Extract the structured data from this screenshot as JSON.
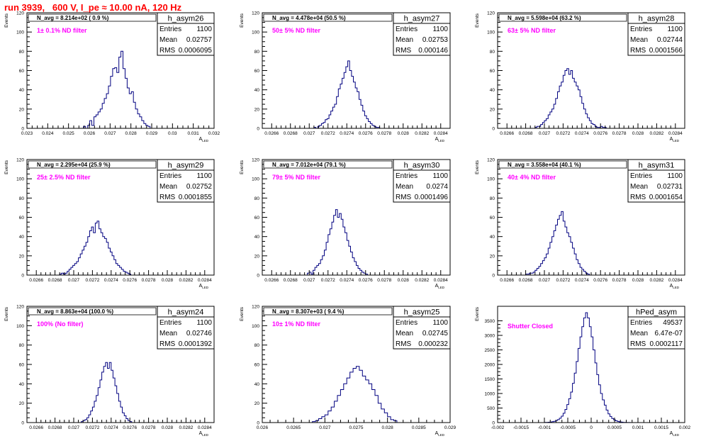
{
  "header": {
    "run_label": "run 3939,   600 V, I_pe ≈ 10.00 nA, 120 Hz",
    "title_color": "#ff0000"
  },
  "colors": {
    "hist_line": "#000080",
    "filter_text": "#ff00ff",
    "frame": "#000000"
  },
  "chart_data": [
    {
      "type": "histogram",
      "name": "h_asym26",
      "stats": {
        "Entries": "1100",
        "Mean": "0.02757",
        "RMS": "0.0006095"
      },
      "navg": "N_avg = 8.214e+02 ( 0.9 %)",
      "filter": "1± 0.1% ND filter",
      "xlim": [
        0.023,
        0.032
      ],
      "ylim": [
        0,
        120
      ],
      "yticks": [
        0,
        20,
        40,
        60,
        80,
        100,
        120
      ],
      "xtick_labels": [
        "0.023",
        "0.024",
        "0.025",
        "0.026",
        "0.027",
        "0.028",
        "0.029",
        "0.03",
        "0.031",
        "0.032"
      ],
      "xtick_values": [
        0.023,
        0.024,
        0.025,
        0.026,
        0.027,
        0.028,
        0.029,
        0.03,
        0.031,
        0.032
      ],
      "xlabel": "A_LED",
      "ylabel": "Events",
      "bins": {
        "x0": 0.02572,
        "width": 0.0001,
        "counts": [
          2,
          0,
          3,
          8,
          3,
          12,
          14,
          17,
          20,
          26,
          31,
          36,
          44,
          54,
          62,
          63,
          58,
          74,
          80,
          62,
          52,
          42,
          36,
          38,
          27,
          20,
          15,
          12,
          8,
          5,
          3,
          2
        ]
      }
    },
    {
      "type": "histogram",
      "name": "h_asym27",
      "stats": {
        "Entries": "1100",
        "Mean": "0.02753",
        "RMS": "0.000146"
      },
      "navg": "N_avg = 4.478e+04 (50.5 %)",
      "filter": "50± 5% ND filter",
      "xlim": [
        0.0265,
        0.0285
      ],
      "ylim": [
        0,
        120
      ],
      "yticks": [
        0,
        20,
        40,
        60,
        80,
        100,
        120
      ],
      "xtick_labels": [
        "0.0266",
        "0.0268",
        "0.027",
        "0.0272",
        "0.0274",
        "0.0276",
        "0.0278",
        "0.028",
        "0.0282",
        "0.0284"
      ],
      "xtick_values": [
        0.0266,
        0.0268,
        0.027,
        0.0272,
        0.0274,
        0.0276,
        0.0278,
        0.028,
        0.0282,
        0.0284
      ],
      "xlabel": "A_LED",
      "ylabel": "Events",
      "bins": {
        "x0": 0.02705,
        "width": 2e-05,
        "counts": [
          1,
          0,
          2,
          3,
          5,
          6,
          9,
          10,
          14,
          18,
          22,
          25,
          33,
          41,
          46,
          52,
          58,
          64,
          70,
          60,
          54,
          48,
          42,
          38,
          30,
          24,
          18,
          13,
          10,
          7,
          5,
          3,
          2,
          1,
          1
        ]
      }
    },
    {
      "type": "histogram",
      "name": "h_asym28",
      "stats": {
        "Entries": "1100",
        "Mean": "0.02744",
        "RMS": "0.0001566"
      },
      "navg": "N_avg = 5.598e+04 (63.2 %)",
      "filter": "63± 5% ND filter",
      "xlim": [
        0.0265,
        0.0285
      ],
      "ylim": [
        0,
        120
      ],
      "yticks": [
        0,
        20,
        40,
        60,
        80,
        100,
        120
      ],
      "xtick_labels": [
        "0.0266",
        "0.0268",
        "0.027",
        "0.0272",
        "0.0274",
        "0.0276",
        "0.0278",
        "0.028",
        "0.0282",
        "0.0284"
      ],
      "xtick_values": [
        0.0266,
        0.0268,
        0.027,
        0.0272,
        0.0274,
        0.0276,
        0.0278,
        0.028,
        0.0282,
        0.0284
      ],
      "xlabel": "A_LED",
      "ylabel": "Events",
      "bins": {
        "x0": 0.0269,
        "width": 2e-05,
        "counts": [
          1,
          2,
          2,
          4,
          6,
          8,
          10,
          14,
          17,
          20,
          25,
          31,
          38,
          44,
          48,
          55,
          60,
          62,
          56,
          60,
          52,
          48,
          44,
          40,
          33,
          26,
          20,
          15,
          11,
          8,
          5,
          4,
          2,
          1,
          1,
          2,
          1,
          1
        ]
      }
    },
    {
      "type": "histogram",
      "name": "h_asym29",
      "stats": {
        "Entries": "1100",
        "Mean": "0.02752",
        "RMS": "0.0001855"
      },
      "navg": "N_avg = 2.295e+04 (25.9 %)",
      "filter": "25± 2.5% ND filter",
      "xlim": [
        0.0265,
        0.0285
      ],
      "ylim": [
        0,
        120
      ],
      "yticks": [
        0,
        20,
        40,
        60,
        80,
        100,
        120
      ],
      "xtick_labels": [
        "0.0266",
        "0.0268",
        "0.027",
        "0.0272",
        "0.0274",
        "0.0276",
        "0.0278",
        "0.028",
        "0.0282",
        "0.0284"
      ],
      "xtick_values": [
        0.0266,
        0.0268,
        0.027,
        0.0272,
        0.0274,
        0.0276,
        0.0278,
        0.028,
        0.0282,
        0.0284
      ],
      "xlabel": "A_LED",
      "ylabel": "Events",
      "bins": {
        "x0": 0.02685,
        "width": 2e-05,
        "counts": [
          1,
          2,
          1,
          2,
          4,
          6,
          8,
          10,
          12,
          14,
          18,
          22,
          26,
          30,
          34,
          40,
          46,
          50,
          44,
          54,
          56,
          48,
          44,
          40,
          38,
          34,
          28,
          24,
          20,
          16,
          12,
          10,
          8,
          6,
          4,
          3,
          2,
          1
        ]
      }
    },
    {
      "type": "histogram",
      "name": "h_asym30",
      "stats": {
        "Entries": "1100",
        "Mean": "0.0274",
        "RMS": "0.0001496"
      },
      "navg": "N_avg = 7.012e+04 (79.1 %)",
      "filter": "79± 5% ND filter",
      "xlim": [
        0.0265,
        0.0285
      ],
      "ylim": [
        0,
        120
      ],
      "yticks": [
        0,
        20,
        40,
        60,
        80,
        100,
        120
      ],
      "xtick_labels": [
        "0.0266",
        "0.0268",
        "0.027",
        "0.0272",
        "0.0274",
        "0.0276",
        "0.0278",
        "0.028",
        "0.0282",
        "0.0284"
      ],
      "xtick_values": [
        0.0266,
        0.0268,
        0.027,
        0.0272,
        0.0274,
        0.0276,
        0.0278,
        0.028,
        0.0282,
        0.0284
      ],
      "xlabel": "A_LED",
      "ylabel": "Events",
      "bins": {
        "x0": 0.02698,
        "width": 2e-05,
        "counts": [
          2,
          3,
          1,
          5,
          8,
          10,
          12,
          16,
          20,
          26,
          34,
          42,
          48,
          55,
          62,
          68,
          60,
          64,
          58,
          50,
          44,
          36,
          30,
          24,
          18,
          14,
          10,
          7,
          5,
          3,
          2,
          1
        ]
      }
    },
    {
      "type": "histogram",
      "name": "h_asym31",
      "stats": {
        "Entries": "1100",
        "Mean": "0.02731",
        "RMS": "0.0001654"
      },
      "navg": "N_avg = 3.558e+04 (40.1 %)",
      "filter": "40± 4% ND filter",
      "xlim": [
        0.0265,
        0.0285
      ],
      "ylim": [
        0,
        120
      ],
      "yticks": [
        0,
        20,
        40,
        60,
        80,
        100,
        120
      ],
      "xtick_labels": [
        "0.0266",
        "0.0268",
        "0.027",
        "0.0272",
        "0.0274",
        "0.0276",
        "0.0278",
        "0.028",
        "0.0282",
        "0.0284"
      ],
      "xtick_values": [
        0.0266,
        0.0268,
        0.027,
        0.0272,
        0.0274,
        0.0276,
        0.0278,
        0.028,
        0.0282,
        0.0284
      ],
      "xlabel": "A_LED",
      "ylabel": "Events",
      "bins": {
        "x0": 0.0268,
        "width": 2e-05,
        "counts": [
          1,
          1,
          2,
          2,
          3,
          5,
          7,
          9,
          12,
          15,
          18,
          22,
          28,
          34,
          40,
          46,
          52,
          58,
          62,
          66,
          56,
          50,
          44,
          40,
          34,
          28,
          22,
          16,
          12,
          8,
          6,
          4,
          2,
          1
        ]
      }
    },
    {
      "type": "histogram",
      "name": "h_asym24",
      "stats": {
        "Entries": "1100",
        "Mean": "0.02746",
        "RMS": "0.0001392"
      },
      "navg": "N_avg = 8.863e+04 (100.0 %)",
      "filter": "100% (No filter)",
      "xlim": [
        0.0265,
        0.0285
      ],
      "ylim": [
        0,
        120
      ],
      "yticks": [
        0,
        20,
        40,
        60,
        80,
        100,
        120
      ],
      "xtick_labels": [
        "0.0266",
        "0.0268",
        "0.027",
        "0.0272",
        "0.0274",
        "0.0276",
        "0.0278",
        "0.028",
        "0.0282",
        "0.0284"
      ],
      "xtick_values": [
        0.0266,
        0.0268,
        0.027,
        0.0272,
        0.0274,
        0.0276,
        0.0278,
        0.028,
        0.0282,
        0.0284
      ],
      "xlabel": "A_LED",
      "ylabel": "Events",
      "bins": {
        "x0": 0.02708,
        "width": 2e-05,
        "counts": [
          1,
          2,
          3,
          5,
          8,
          12,
          16,
          22,
          28,
          36,
          44,
          52,
          58,
          62,
          56,
          62,
          54,
          46,
          38,
          30,
          22,
          16,
          10,
          7,
          4,
          2,
          1
        ]
      }
    },
    {
      "type": "histogram",
      "name": "h_asym25",
      "stats": {
        "Entries": "1100",
        "Mean": "0.02745",
        "RMS": "0.000232"
      },
      "navg": "N_avg = 8.307e+03 ( 9.4 %)",
      "filter": "10± 1% ND filter",
      "xlim": [
        0.026,
        0.029
      ],
      "ylim": [
        0,
        120
      ],
      "yticks": [
        0,
        20,
        40,
        60,
        80,
        100,
        120
      ],
      "xtick_labels": [
        "0.026",
        "0.0265",
        "0.027",
        "0.0275",
        "0.028",
        "0.0285",
        "0.029"
      ],
      "xtick_values": [
        0.026,
        0.0265,
        0.027,
        0.0275,
        0.028,
        0.0285,
        0.029
      ],
      "xlabel": "A_LED",
      "ylabel": "Events",
      "bins": {
        "x0": 0.0268,
        "width": 5e-05,
        "counts": [
          1,
          2,
          4,
          6,
          8,
          12,
          16,
          22,
          28,
          34,
          40,
          46,
          52,
          56,
          58,
          54,
          48,
          44,
          40,
          34,
          28,
          20,
          14,
          10,
          6,
          3,
          2
        ]
      }
    },
    {
      "type": "histogram",
      "name": "hPed_asym",
      "stats": {
        "Entries": "49537",
        "Mean": "6.47e-07",
        "RMS": "0.0002117"
      },
      "navg": "",
      "filter": "Shutter Closed",
      "xlim": [
        -0.002,
        0.002
      ],
      "ylim": [
        0,
        4000
      ],
      "yticks": [
        0,
        500,
        1000,
        1500,
        2000,
        2500,
        3000,
        3500
      ],
      "xtick_labels": [
        "-0.002",
        "-0.0015",
        "-0.001",
        "-0.0005",
        "0",
        "0.0005",
        "0.001",
        "0.0015",
        "0.002"
      ],
      "xtick_values": [
        -0.002,
        -0.0015,
        -0.001,
        -0.0005,
        0,
        0.0005,
        0.001,
        0.0015,
        0.002
      ],
      "xlabel": "A_LED",
      "ylabel": "Events",
      "bins": {
        "x0": -0.001,
        "width": 4e-05,
        "counts": [
          5,
          8,
          12,
          20,
          30,
          45,
          70,
          100,
          150,
          220,
          320,
          450,
          620,
          820,
          1050,
          1350,
          1700,
          2100,
          2550,
          2950,
          3300,
          3600,
          3780,
          3600,
          3300,
          2950,
          2500,
          2050,
          1650,
          1300,
          1000,
          780,
          600,
          430,
          300,
          210,
          140,
          95,
          60,
          40,
          25,
          15,
          8,
          5,
          3,
          2,
          1,
          1,
          1,
          1
        ]
      }
    }
  ]
}
